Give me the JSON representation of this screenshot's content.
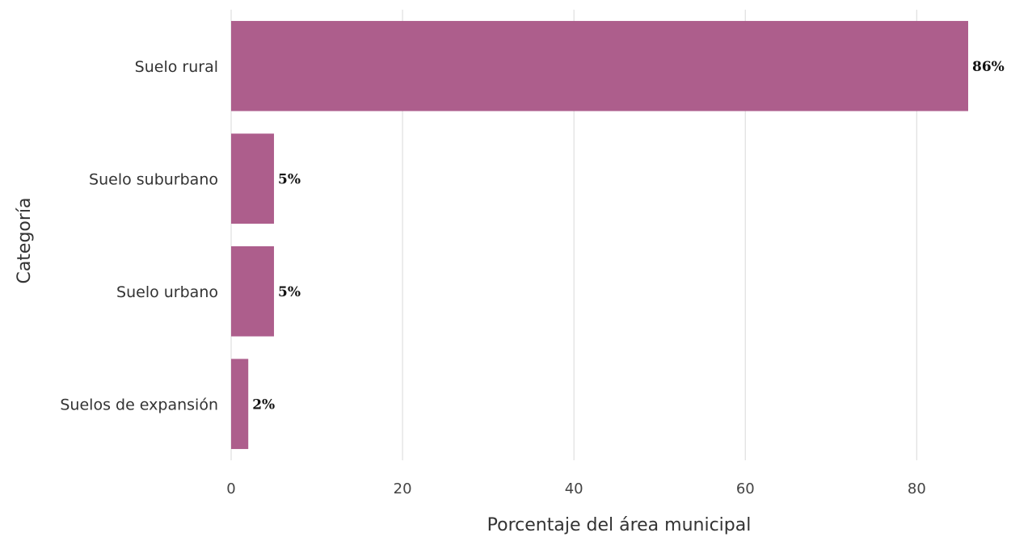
{
  "chart_data": {
    "type": "bar",
    "orientation": "horizontal",
    "categories": [
      "Suelo rural",
      "Suelo suburbano",
      "Suelo urbano",
      "Suelos de expansión"
    ],
    "values": [
      86,
      5,
      5,
      2
    ],
    "data_labels": [
      "86%",
      "5%",
      "5%",
      "2%"
    ],
    "xlabel": "Porcentaje del área municipal",
    "ylabel": "Categoría",
    "xlim": [
      0,
      86
    ],
    "xticks": [
      0,
      20,
      40,
      60,
      80
    ],
    "grid": "vertical",
    "legend": "none",
    "bar_color": "#ad5e8c"
  }
}
